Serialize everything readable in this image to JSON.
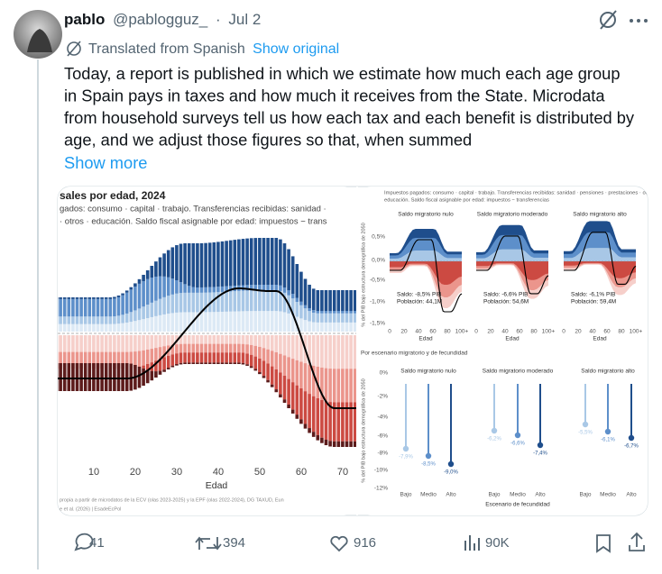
{
  "tweet": {
    "author": {
      "name": "pablo",
      "handle": "@pablogguz_",
      "separator": "·",
      "date": "Jul 2"
    },
    "translation": {
      "label": "Translated from Spanish",
      "link": "Show original"
    },
    "text": [
      "Today, a report is published in which we estimate how much each age group",
      "in Spain pays in taxes and how much it receives from the State. Microdata",
      "from household surveys tell us how each tax and each benefit is distributed by",
      "age, and we adjust those figures so that, when summed"
    ],
    "show_more": "Show more",
    "media": {
      "left": {
        "title": "sales por edad, 2024",
        "legend": [
          "gados: consumo · capital · trabajo. Transferencias recibidas: sanidad ·",
          "· otros · educación. Saldo fiscal asignable por edad: impuestos − trans"
        ],
        "x_ticks": [
          "10",
          "20",
          "30",
          "40",
          "50",
          "60",
          "70"
        ],
        "x_label": "Edad",
        "source": [
          "propia a partir de microdatos de la ECV (olas 2023-2025) y la EPF (olas 2022-2024), DG TAXUD, Eun",
          "e et al. (2026) | EsadeEcPol"
        ]
      },
      "right_top": {
        "legend": [
          "Impuestos pagados: consumo · capital · trabajo. Transferencias recibidas: sanidad · pensiones · prestaciones · otros ·",
          "educación. Saldo fiscal asignable por edad: impuestos − transferencias"
        ],
        "y_label": "% del PIB bajo estructura demográfica de 2050",
        "y_ticks": [
          "0,5%",
          "0,0%",
          "-0,5%",
          "-1,0%",
          "-1,5%"
        ],
        "panels": [
          {
            "title": "Saldo migratorio nulo",
            "saldo": "Saldo: -8,5% PIB",
            "poblacion": "Población: 44,1M"
          },
          {
            "title": "Saldo migratorio moderado",
            "saldo": "Saldo: -6,6% PIB",
            "poblacion": "Población: 54,6M"
          },
          {
            "title": "Saldo migratorio alto",
            "saldo": "Saldo: -6,1% PIB",
            "poblacion": "Población: 59,4M"
          }
        ],
        "x_ticks": [
          "0",
          "20",
          "40",
          "60",
          "80",
          "100+"
        ],
        "x_label": "Edad"
      },
      "right_bottom": {
        "subtitle": "Por escenario migratorio y de fecundidad",
        "y_label": "% del PIB bajo estructura demográfica de 2050",
        "y_ticks": [
          "0%",
          "-2%",
          "-4%",
          "-6%",
          "-8%",
          "-10%",
          "-12%"
        ],
        "panels": [
          {
            "title": "Saldo migratorio nulo",
            "labels": [
              "-7,9%",
              "-8,5%",
              "-9,0%"
            ]
          },
          {
            "title": "Saldo migratorio moderado",
            "labels": [
              "-6,2%",
              "-6,6%",
              "-7,4%"
            ]
          },
          {
            "title": "Saldo migratorio alto",
            "labels": [
              "-5,5%",
              "-6,1%",
              "-6,7%"
            ]
          }
        ],
        "x_ticks": [
          "Bajo",
          "Medio",
          "Alto"
        ],
        "x_label": "Escenario de fecundidad"
      }
    },
    "stats": {
      "replies": 41,
      "reposts": 394,
      "likes": 916,
      "views": "90K"
    }
  }
}
